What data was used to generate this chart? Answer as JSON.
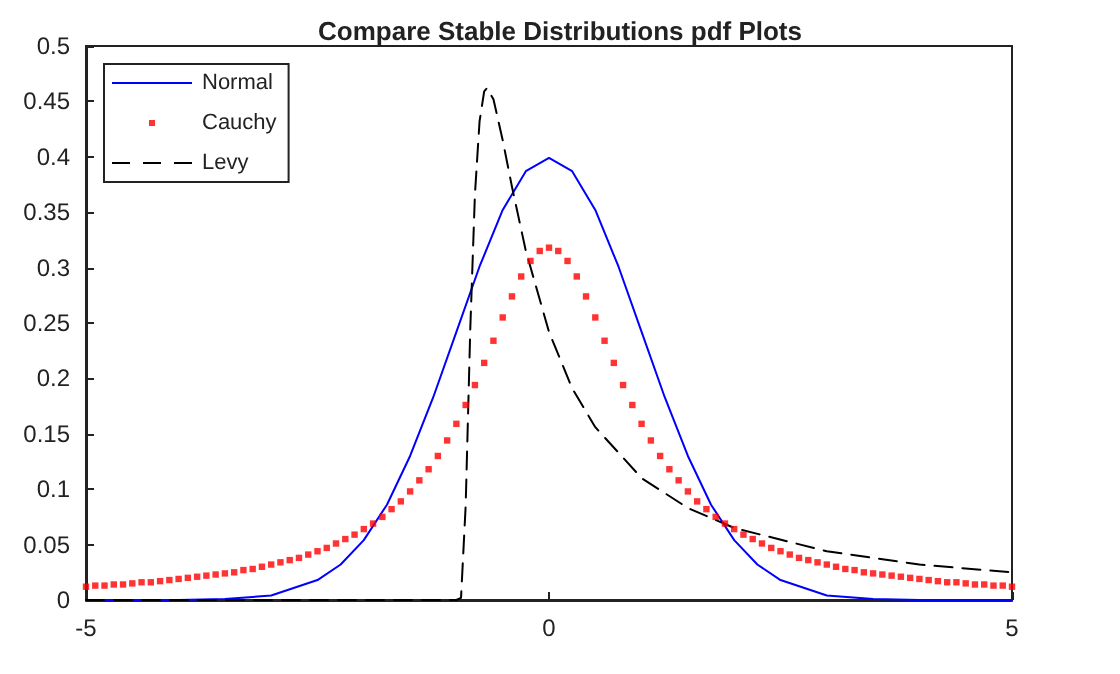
{
  "chart_data": {
    "type": "line",
    "title": "Compare Stable Distributions pdf Plots",
    "xlim": [
      -5,
      5
    ],
    "xticks": [
      -5,
      0,
      5
    ],
    "ylim": [
      0,
      0.5
    ],
    "yticks": [
      0,
      0.05,
      0.1,
      0.15,
      0.2,
      0.25,
      0.3,
      0.35,
      0.4,
      0.45,
      0.5
    ],
    "grid": false,
    "legend": "top left",
    "marker": "none",
    "series": [
      {
        "name": "Normal",
        "color": "#0000ff",
        "line_style": "solid",
        "x": [
          -5,
          -4,
          -3.5,
          -3,
          -2.5,
          -2.25,
          -2,
          -1.75,
          -1.5,
          -1.25,
          -1,
          -0.75,
          -0.5,
          -0.25,
          0,
          0.25,
          0.5,
          0.75,
          1,
          1.25,
          1.5,
          1.75,
          2,
          2.25,
          2.5,
          3,
          3.5,
          4,
          5
        ],
        "values": [
          0,
          0,
          0.001,
          0.004,
          0.018,
          0.032,
          0.054,
          0.086,
          0.13,
          0.183,
          0.242,
          0.301,
          0.352,
          0.387,
          0.399,
          0.387,
          0.352,
          0.301,
          0.242,
          0.183,
          0.13,
          0.086,
          0.054,
          0.032,
          0.018,
          0.004,
          0.001,
          0,
          0
        ]
      },
      {
        "name": "Cauchy",
        "type": "scatter",
        "marker": "square",
        "color": "#ff0000",
        "x": [
          -5,
          -4.9,
          -4.8,
          -4.7,
          -4.6,
          -4.5,
          -4.4,
          -4.3,
          -4.2,
          -4.1,
          -4,
          -3.9,
          -3.8,
          -3.7,
          -3.6,
          -3.5,
          -3.4,
          -3.3,
          -3.2,
          -3.1,
          -3,
          -2.9,
          -2.8,
          -2.7,
          -2.6,
          -2.5,
          -2.4,
          -2.3,
          -2.2,
          -2.1,
          -2,
          -1.9,
          -1.8,
          -1.7,
          -1.6,
          -1.5,
          -1.4,
          -1.3,
          -1.2,
          -1.1,
          -1,
          -0.9,
          -0.8,
          -0.7,
          -0.6,
          -0.5,
          -0.4,
          -0.3,
          -0.2,
          -0.1,
          0,
          0.1,
          0.2,
          0.3,
          0.4,
          0.5,
          0.6,
          0.7,
          0.8,
          0.9,
          1,
          1.1,
          1.2,
          1.3,
          1.4,
          1.5,
          1.6,
          1.7,
          1.8,
          1.9,
          2,
          2.1,
          2.2,
          2.3,
          2.4,
          2.5,
          2.6,
          2.7,
          2.8,
          2.9,
          3,
          3.1,
          3.2,
          3.3,
          3.4,
          3.5,
          3.6,
          3.7,
          3.8,
          3.9,
          4,
          4.1,
          4.2,
          4.3,
          4.4,
          4.5,
          4.6,
          4.7,
          4.8,
          4.9,
          5
        ],
        "values": [
          0.012,
          0.013,
          0.013,
          0.014,
          0.014,
          0.015,
          0.016,
          0.016,
          0.017,
          0.018,
          0.019,
          0.02,
          0.021,
          0.022,
          0.023,
          0.024,
          0.025,
          0.027,
          0.028,
          0.03,
          0.032,
          0.034,
          0.036,
          0.038,
          0.041,
          0.044,
          0.047,
          0.051,
          0.055,
          0.059,
          0.064,
          0.069,
          0.075,
          0.082,
          0.089,
          0.098,
          0.108,
          0.118,
          0.13,
          0.144,
          0.159,
          0.176,
          0.194,
          0.214,
          0.234,
          0.255,
          0.274,
          0.292,
          0.306,
          0.315,
          0.318,
          0.315,
          0.306,
          0.292,
          0.274,
          0.255,
          0.234,
          0.214,
          0.194,
          0.176,
          0.159,
          0.144,
          0.13,
          0.118,
          0.108,
          0.098,
          0.089,
          0.082,
          0.075,
          0.069,
          0.064,
          0.059,
          0.055,
          0.051,
          0.047,
          0.044,
          0.041,
          0.038,
          0.036,
          0.034,
          0.032,
          0.03,
          0.028,
          0.027,
          0.025,
          0.024,
          0.023,
          0.022,
          0.021,
          0.02,
          0.019,
          0.018,
          0.017,
          0.016,
          0.016,
          0.015,
          0.014,
          0.014,
          0.013,
          0.013,
          0.012
        ]
      },
      {
        "name": "Levy",
        "color": "#000000",
        "line_style": "dashed",
        "x": [
          -5,
          -1,
          -0.95,
          -0.9,
          -0.85,
          -0.8,
          -0.75,
          -0.7,
          -0.67,
          -0.6,
          -0.5,
          -0.4,
          -0.25,
          0,
          0.25,
          0.5,
          1,
          1.5,
          2,
          3,
          4,
          5
        ],
        "values": [
          0,
          0,
          0.002,
          0.085,
          0.245,
          0.366,
          0.432,
          0.459,
          0.462,
          0.452,
          0.415,
          0.373,
          0.315,
          0.242,
          0.191,
          0.156,
          0.11,
          0.083,
          0.065,
          0.044,
          0.032,
          0.025
        ]
      }
    ]
  }
}
